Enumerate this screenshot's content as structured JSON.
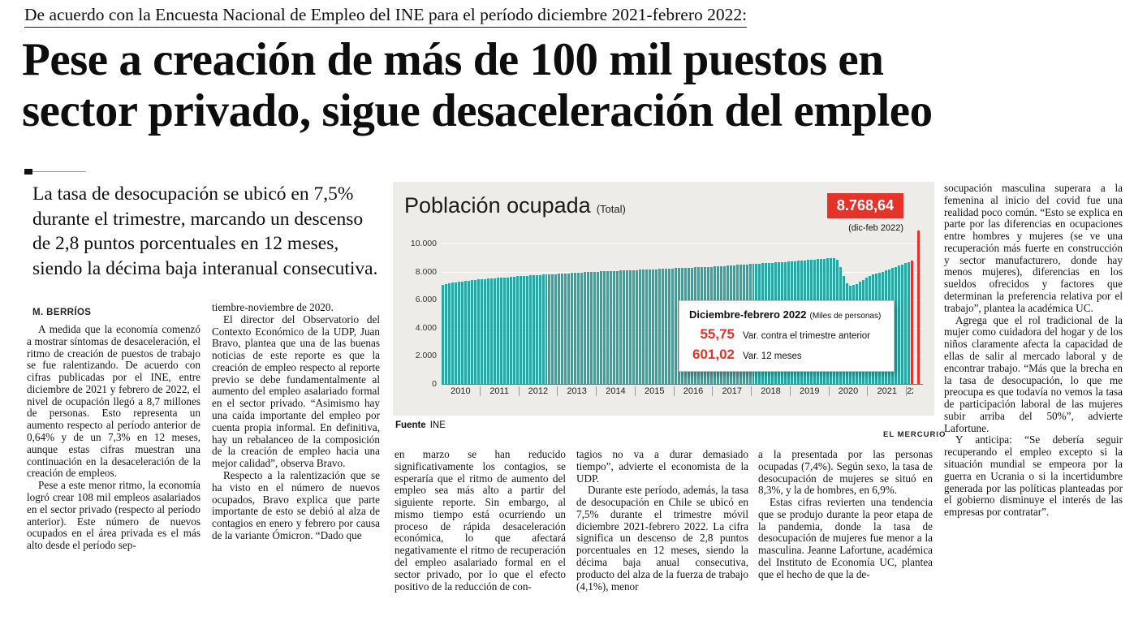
{
  "kicker": "De acuerdo con la Encuesta Nacional de Empleo del INE para el período diciembre 2021-febrero 2022:",
  "headline_lines": [
    "Pese a creación de más de 100 mil puestos en",
    "sector privado, sigue desaceleración del empleo"
  ],
  "lead": "La tasa de desocupación se ubicó en 7,5% durante el trimestre, marcando un descenso de 2,8 puntos porcentuales en 12 meses, siendo la décima baja interanual consecutiva.",
  "byline": "M. BERRÍOS",
  "columns": {
    "col1": [
      "A medida que la economía comenzó a mostrar síntomas de desaceleración, el ritmo de creación de puestos de trabajo se fue ralentizando. De acuerdo con cifras publicadas por el INE, entre diciembre de 2021 y febrero de 2022, el nivel de ocupación llegó a 8,7 millones de personas. Esto representa un aumento respecto al período anterior de 0,64% y de un 7,3% en 12 meses, aunque estas cifras muestran una continuación en la desaceleración de la creación de empleos.",
      "Pese a este menor ritmo, la economía logró crear 108 mil empleos asalariados en el sector privado (respecto al período anterior). Este número de nuevos ocupados en el área privada es el más alto desde el período sep-"
    ],
    "col2": [
      "tiembre-noviembre de 2020.",
      "El director del Observatorio del Contexto Económico de la UDP, Juan Bravo, plantea que una de las buenas noticias de este reporte es que la creación de empleo respecto al reporte previo se debe fundamentalmente al aumento del empleo asalariado formal en el sector privado. “Asimismo hay una caída importante del empleo por cuenta propia informal. En definitiva, hay un rebalanceo de la composición de la creación de empleo hacia una mejor calidad”, observa Bravo.",
      "Respecto a la ralentización que se ha visto en el número de nuevos ocupados, Bravo explica que parte importante de esto se debió al alza de contagios en enero y febrero por causa de la variante Ómicron. “Dado que"
    ],
    "col3": [
      "en marzo se han reducido significativamente los contagios, se esperaría que el ritmo de aumento del empleo sea más alto a partir del siguiente reporte. Sin embargo, al mismo tiempo está ocurriendo un proceso de rápida desaceleración económica, lo que afectará negativamente el ritmo de recuperación del empleo asalariado formal en el sector privado, por lo que el efecto positivo de la reducción de con-"
    ],
    "col4": [
      "tagios no va a durar demasiado tiempo”, advierte el economista de la UDP.",
      "Durante este período, además, la tasa de desocupación en Chile se ubicó en 7,5% durante el trimestre móvil diciembre 2021-febrero 2022. La cifra significa un descenso de 2,8 puntos porcentuales en 12 meses, siendo la décima baja anual consecutiva, producto del alza de la fuerza de trabajo (4,1%), menor"
    ],
    "col5": [
      "a la presentada por las personas ocupadas (7,4%). Según sexo, la tasa de desocupación de mujeres se situó en 8,3%, y la de hombres, en 6,9%.",
      "Estas cifras revierten una tendencia que se produjo durante la peor etapa de la pandemia, donde la tasa de desocupación de mujeres fue menor a la masculina. Jeanne Lafortune, académica del Instituto de Economía UC, plantea que el hecho de que la de-"
    ],
    "col6": [
      "socupación masculina superara a la femenina al inicio del covid fue una realidad poco común. “Esto se explica en parte por las diferencias en ocupaciones entre hombres y mujeres (se ve una recuperación más fuerte en construcción y sector manufacturero, donde hay menos mujeres), diferencias en los sueldos ofrecidos y factores que determinan la preferencia relativa por el trabajo”, plantea la académica UC.",
      "Agrega que el rol tradicional de la mujer como cuidadora del hogar y de los niños claramente afecta la capacidad de ellas de salir al mercado laboral y de encontrar trabajo. “Más que la brecha en la tasa de desocupación, lo que me preocupa es que todavía no vemos la tasa de participación laboral de las mujeres subir arriba del 50%”, advierte Lafortune.",
      "Y anticipa: “Se debería seguir recuperando el empleo excepto si la situación mundial se empeora por la guerra en Ucrania o si la incertidumbre generada por las políticas planteadas por el gobierno disminuye el interés de las empresas por contratar”."
    ]
  },
  "chart": {
    "title": "Población ocupada",
    "title_suffix": "(Total)",
    "badge_value": "8.768,64",
    "badge_caption": "(dic-feb 2022)",
    "callout": {
      "title": "Diciembre-febrero 2022",
      "title_suffix": "(Miles de personas)",
      "rows": [
        {
          "value": "55,75",
          "label": "Var. contra el trimestre anterior"
        },
        {
          "value": "601,02",
          "label": "Var. 12 meses"
        }
      ]
    },
    "source_label": "Fuente",
    "source_value": "INE",
    "credit": "EL MERCURIO",
    "colors": {
      "bar": "#2ba7a3",
      "highlight": "#e6332a",
      "plot_bg": "#edece8"
    }
  },
  "chart_data": {
    "type": "bar",
    "title": "Población ocupada (Total)",
    "unit": "Miles de personas",
    "ylim": [
      0,
      10000
    ],
    "y_ticks": [
      "10.000",
      "8.000",
      "6.000",
      "4.000",
      "2.000",
      "0"
    ],
    "x_years": [
      "2010",
      "2011",
      "2012",
      "2013",
      "2014",
      "2015",
      "2016",
      "2017",
      "2018",
      "2019",
      "2020",
      "2021",
      "22"
    ],
    "values": [
      7080,
      7120,
      7160,
      7200,
      7240,
      7270,
      7300,
      7330,
      7350,
      7380,
      7410,
      7440,
      7460,
      7480,
      7500,
      7520,
      7540,
      7560,
      7570,
      7590,
      7600,
      7620,
      7640,
      7660,
      7670,
      7690,
      7700,
      7720,
      7730,
      7750,
      7760,
      7780,
      7790,
      7800,
      7820,
      7830,
      7840,
      7860,
      7870,
      7880,
      7900,
      7910,
      7920,
      7930,
      7950,
      7960,
      7970,
      7990,
      8000,
      8010,
      8020,
      8030,
      8040,
      8050,
      8060,
      8070,
      8080,
      8090,
      8100,
      8110,
      8120,
      8130,
      8140,
      8150,
      8160,
      8170,
      8180,
      8190,
      8200,
      8210,
      8220,
      8230,
      8240,
      8250,
      8260,
      8270,
      8280,
      8290,
      8300,
      8310,
      8320,
      8330,
      8340,
      8350,
      8360,
      8380,
      8390,
      8410,
      8420,
      8440,
      8450,
      8470,
      8480,
      8500,
      8510,
      8530,
      8540,
      8560,
      8570,
      8590,
      8610,
      8620,
      8640,
      8650,
      8670,
      8690,
      8700,
      8720,
      8730,
      8750,
      8770,
      8790,
      8810,
      8830,
      8850,
      8870,
      8890,
      8910,
      8930,
      8950,
      8960,
      8950,
      8850,
      8350,
      7700,
      7150,
      7020,
      7050,
      7130,
      7260,
      7420,
      7580,
      7700,
      7780,
      7850,
      7920,
      8000,
      8080,
      8160,
      8250,
      8340,
      8430,
      8520,
      8610,
      8700,
      8768.64
    ],
    "last_value": 8768.64,
    "last_period": "dic-feb 2022",
    "var_vs_previous_quarter": 55.75,
    "var_12_months": 601.02,
    "grid": true,
    "legend": false,
    "source": "INE"
  }
}
